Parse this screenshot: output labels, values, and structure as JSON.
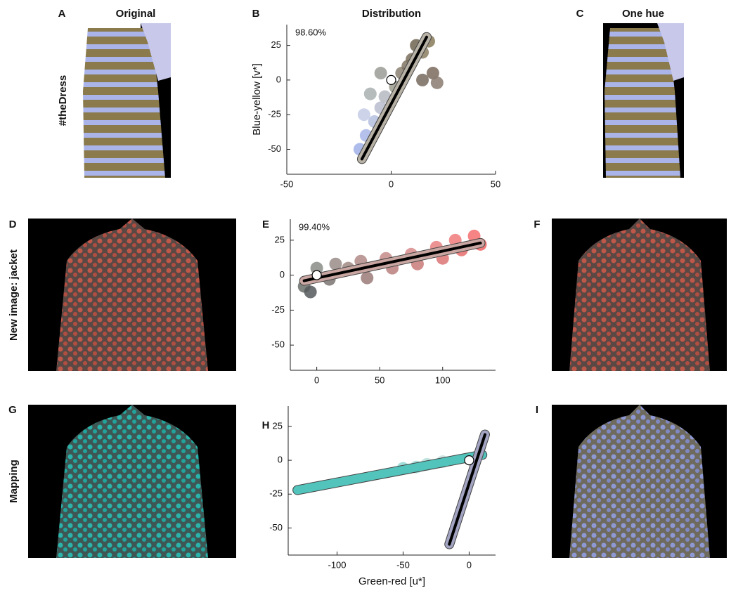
{
  "letters": [
    "A",
    "B",
    "C",
    "D",
    "E",
    "F",
    "G",
    "H",
    "I"
  ],
  "columns": [
    "Original",
    "Distribution",
    "One hue"
  ],
  "rows": [
    "#theDress",
    "New image: jacket",
    "Mapping"
  ],
  "chart_data": [
    {
      "type": "scatter",
      "annotation": "98.60%",
      "ylabel": "Blue-yellow [v*]",
      "xlim": [
        -50,
        50
      ],
      "xticks": [
        -50,
        0,
        50
      ],
      "ylim": [
        -68,
        40
      ],
      "yticks": [
        -50,
        -25,
        0,
        25
      ],
      "x": [
        -15,
        -12,
        -8,
        -13,
        -5,
        -10,
        -3,
        2,
        5,
        -5,
        8,
        10,
        15,
        12,
        18,
        20,
        22,
        15
      ],
      "y": [
        -50,
        -40,
        -30,
        -25,
        -20,
        -10,
        -12,
        -5,
        5,
        5,
        10,
        15,
        20,
        25,
        28,
        5,
        -2,
        0
      ],
      "colors": [
        "#9fb0e6",
        "#a8b6e8",
        "#b5bfdf",
        "#c4cde6",
        "#b8bccd",
        "#a9b0b0",
        "#b6b9c2",
        "#9a9a8c",
        "#8a8070",
        "#9a9a95",
        "#7f7464",
        "#7a6e5c",
        "#8a7c60",
        "#6e6450",
        "#877a58",
        "#7a6a5c",
        "#8a7a70",
        "#776a5e"
      ],
      "lines": [
        {
          "x": [
            -14,
            17
          ],
          "y": [
            -57,
            31
          ],
          "color": "#b8b2a6",
          "core_line": true
        }
      ],
      "mean": {
        "x": 0,
        "y": 0
      }
    },
    {
      "type": "scatter",
      "annotation": "99.40%",
      "xlim": [
        -21,
        142
      ],
      "xticks": [
        0,
        50,
        100
      ],
      "ylim": [
        -68,
        40
      ],
      "yticks": [
        -50,
        -25,
        0,
        25
      ],
      "x": [
        -10,
        -5,
        0,
        10,
        15,
        25,
        35,
        40,
        55,
        60,
        75,
        80,
        95,
        100,
        110,
        115,
        125,
        130
      ],
      "y": [
        -8,
        -12,
        5,
        -3,
        8,
        5,
        10,
        -2,
        12,
        5,
        15,
        8,
        20,
        12,
        25,
        18,
        28,
        22
      ],
      "colors": [
        "#6a6e6a",
        "#55585a",
        "#8a8c86",
        "#7a7472",
        "#9a8c88",
        "#a08882",
        "#b08a86",
        "#9a7a78",
        "#c48a88",
        "#b87e7c",
        "#d88a8a",
        "#c87a78",
        "#e88080",
        "#dc7474",
        "#f07a7a",
        "#e86c6c",
        "#f46e6e",
        "#ee6262"
      ],
      "lines": [
        {
          "x": [
            -10,
            130
          ],
          "y": [
            -4,
            23
          ],
          "color": "#c9a6a2",
          "core_line": true
        }
      ],
      "mean": {
        "x": 0,
        "y": 0
      }
    },
    {
      "type": "scatter",
      "xlabel": "Green-red [u*]",
      "xlim": [
        -137,
        20
      ],
      "xticks": [
        -100,
        -50,
        0
      ],
      "ylim": [
        -70,
        40
      ],
      "yticks": [
        -50,
        -25,
        0,
        25
      ],
      "x": [
        -50,
        -40,
        -32,
        -20
      ],
      "y": [
        -6,
        -5,
        -3,
        -1
      ],
      "colors": [
        "#8fd8d2",
        "#a6ddd8",
        "#b8e0dc",
        "#c8e2e0"
      ],
      "lines": [
        {
          "x": [
            -130,
            10
          ],
          "y": [
            -22,
            4
          ],
          "color": "#52c4bc",
          "core_line": false
        },
        {
          "x": [
            -15,
            12
          ],
          "y": [
            -62,
            19
          ],
          "color": "#a2a4c2",
          "core_line": true
        }
      ],
      "mean": {
        "x": 0,
        "y": 0
      }
    }
  ]
}
